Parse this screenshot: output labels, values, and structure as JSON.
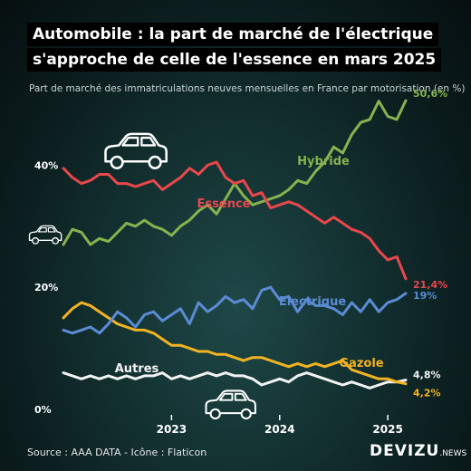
{
  "title_lines": [
    "Automobile : la part de marché de l'électrique",
    "s'approche de celle de l'essence en mars 2025"
  ],
  "subtitle": "Part de marché des immatriculations neuves mensuelles en France par motorisation (en %)",
  "source": "Source : AAA DATA - Icône : Flaticon",
  "brand": {
    "name": "DEVIZU",
    "suffix": ".NEWS"
  },
  "icons": [
    "car-icon",
    "car-icon",
    "car-icon"
  ],
  "chart_data": {
    "type": "line",
    "title": "",
    "xlabel": "",
    "ylabel": "",
    "ylim": [
      0,
      50
    ],
    "y_ticks": [
      {
        "value": 0,
        "label": "0%"
      },
      {
        "value": 20,
        "label": "20%"
      },
      {
        "value": 40,
        "label": "40%"
      }
    ],
    "x_ticks": [
      {
        "index": 12,
        "label": "2023"
      },
      {
        "index": 24,
        "label": "2024"
      },
      {
        "index": 36,
        "label": "2025"
      }
    ],
    "grid": false,
    "x": [
      "2022-01",
      "2022-02",
      "2022-03",
      "2022-04",
      "2022-05",
      "2022-06",
      "2022-07",
      "2022-08",
      "2022-09",
      "2022-10",
      "2022-11",
      "2022-12",
      "2023-01",
      "2023-02",
      "2023-03",
      "2023-04",
      "2023-05",
      "2023-06",
      "2023-07",
      "2023-08",
      "2023-09",
      "2023-10",
      "2023-11",
      "2023-12",
      "2024-01",
      "2024-02",
      "2024-03",
      "2024-04",
      "2024-05",
      "2024-06",
      "2024-07",
      "2024-08",
      "2024-09",
      "2024-10",
      "2024-11",
      "2024-12",
      "2025-01",
      "2025-02",
      "2025-03"
    ],
    "series": [
      {
        "name": "Essence",
        "color": "#e8474b",
        "end_label": "21,4%",
        "values": [
          39.5,
          38.0,
          37.0,
          37.5,
          38.5,
          38.5,
          37.0,
          37.0,
          36.5,
          37.0,
          37.5,
          36.0,
          37.0,
          38.0,
          39.5,
          38.5,
          40.0,
          40.5,
          38.0,
          37.0,
          37.5,
          35.0,
          35.5,
          33.0,
          33.5,
          34.0,
          33.5,
          32.5,
          31.5,
          30.5,
          31.5,
          30.5,
          29.5,
          29.0,
          28.0,
          26.0,
          24.5,
          25.0,
          21.4
        ]
      },
      {
        "name": "Hybride",
        "color": "#86b24f",
        "end_label": "50,6%",
        "values": [
          27.0,
          29.5,
          29.0,
          27.0,
          28.0,
          27.5,
          29.0,
          30.5,
          30.0,
          31.0,
          30.0,
          29.5,
          28.5,
          30.0,
          31.0,
          32.5,
          33.5,
          32.0,
          34.5,
          37.0,
          35.0,
          33.5,
          34.0,
          34.5,
          35.0,
          36.0,
          37.5,
          37.0,
          39.0,
          40.5,
          43.0,
          42.0,
          45.0,
          47.0,
          47.5,
          50.5,
          48.0,
          47.5,
          50.6
        ]
      },
      {
        "name": "Electrique",
        "color": "#5b8bd4",
        "end_label": "19%",
        "values": [
          13.0,
          12.5,
          13.0,
          13.5,
          12.5,
          14.0,
          16.0,
          15.0,
          13.5,
          15.5,
          16.0,
          14.5,
          15.5,
          16.5,
          14.0,
          17.5,
          16.0,
          17.0,
          18.5,
          17.5,
          18.0,
          16.5,
          19.5,
          20.0,
          18.0,
          18.5,
          16.0,
          18.0,
          17.0,
          17.0,
          16.5,
          15.5,
          17.5,
          16.0,
          18.0,
          16.0,
          17.5,
          18.0,
          19.0
        ]
      },
      {
        "name": "Gazole",
        "color": "#f0b323",
        "end_label": "4,2%",
        "values": [
          15.0,
          16.5,
          17.5,
          17.0,
          16.0,
          15.0,
          14.0,
          13.5,
          13.0,
          13.0,
          12.5,
          11.5,
          10.5,
          10.5,
          10.0,
          9.5,
          9.5,
          9.0,
          9.0,
          8.5,
          8.0,
          8.5,
          8.5,
          8.0,
          7.5,
          7.0,
          7.5,
          7.0,
          7.5,
          7.0,
          7.5,
          8.0,
          6.5,
          6.0,
          5.5,
          5.0,
          5.0,
          4.5,
          4.2
        ]
      },
      {
        "name": "Autres",
        "color": "#f2f2f2",
        "end_label": "4,8%",
        "values": [
          6.0,
          5.5,
          5.0,
          5.5,
          5.0,
          5.5,
          5.0,
          5.5,
          5.0,
          5.5,
          5.5,
          6.0,
          5.0,
          5.5,
          5.0,
          5.5,
          6.0,
          5.5,
          6.0,
          5.5,
          5.5,
          5.0,
          4.0,
          4.5,
          5.0,
          4.5,
          5.5,
          6.0,
          5.5,
          5.0,
          4.5,
          4.0,
          4.5,
          4.0,
          3.5,
          4.0,
          4.5,
          4.5,
          4.8
        ]
      }
    ]
  }
}
